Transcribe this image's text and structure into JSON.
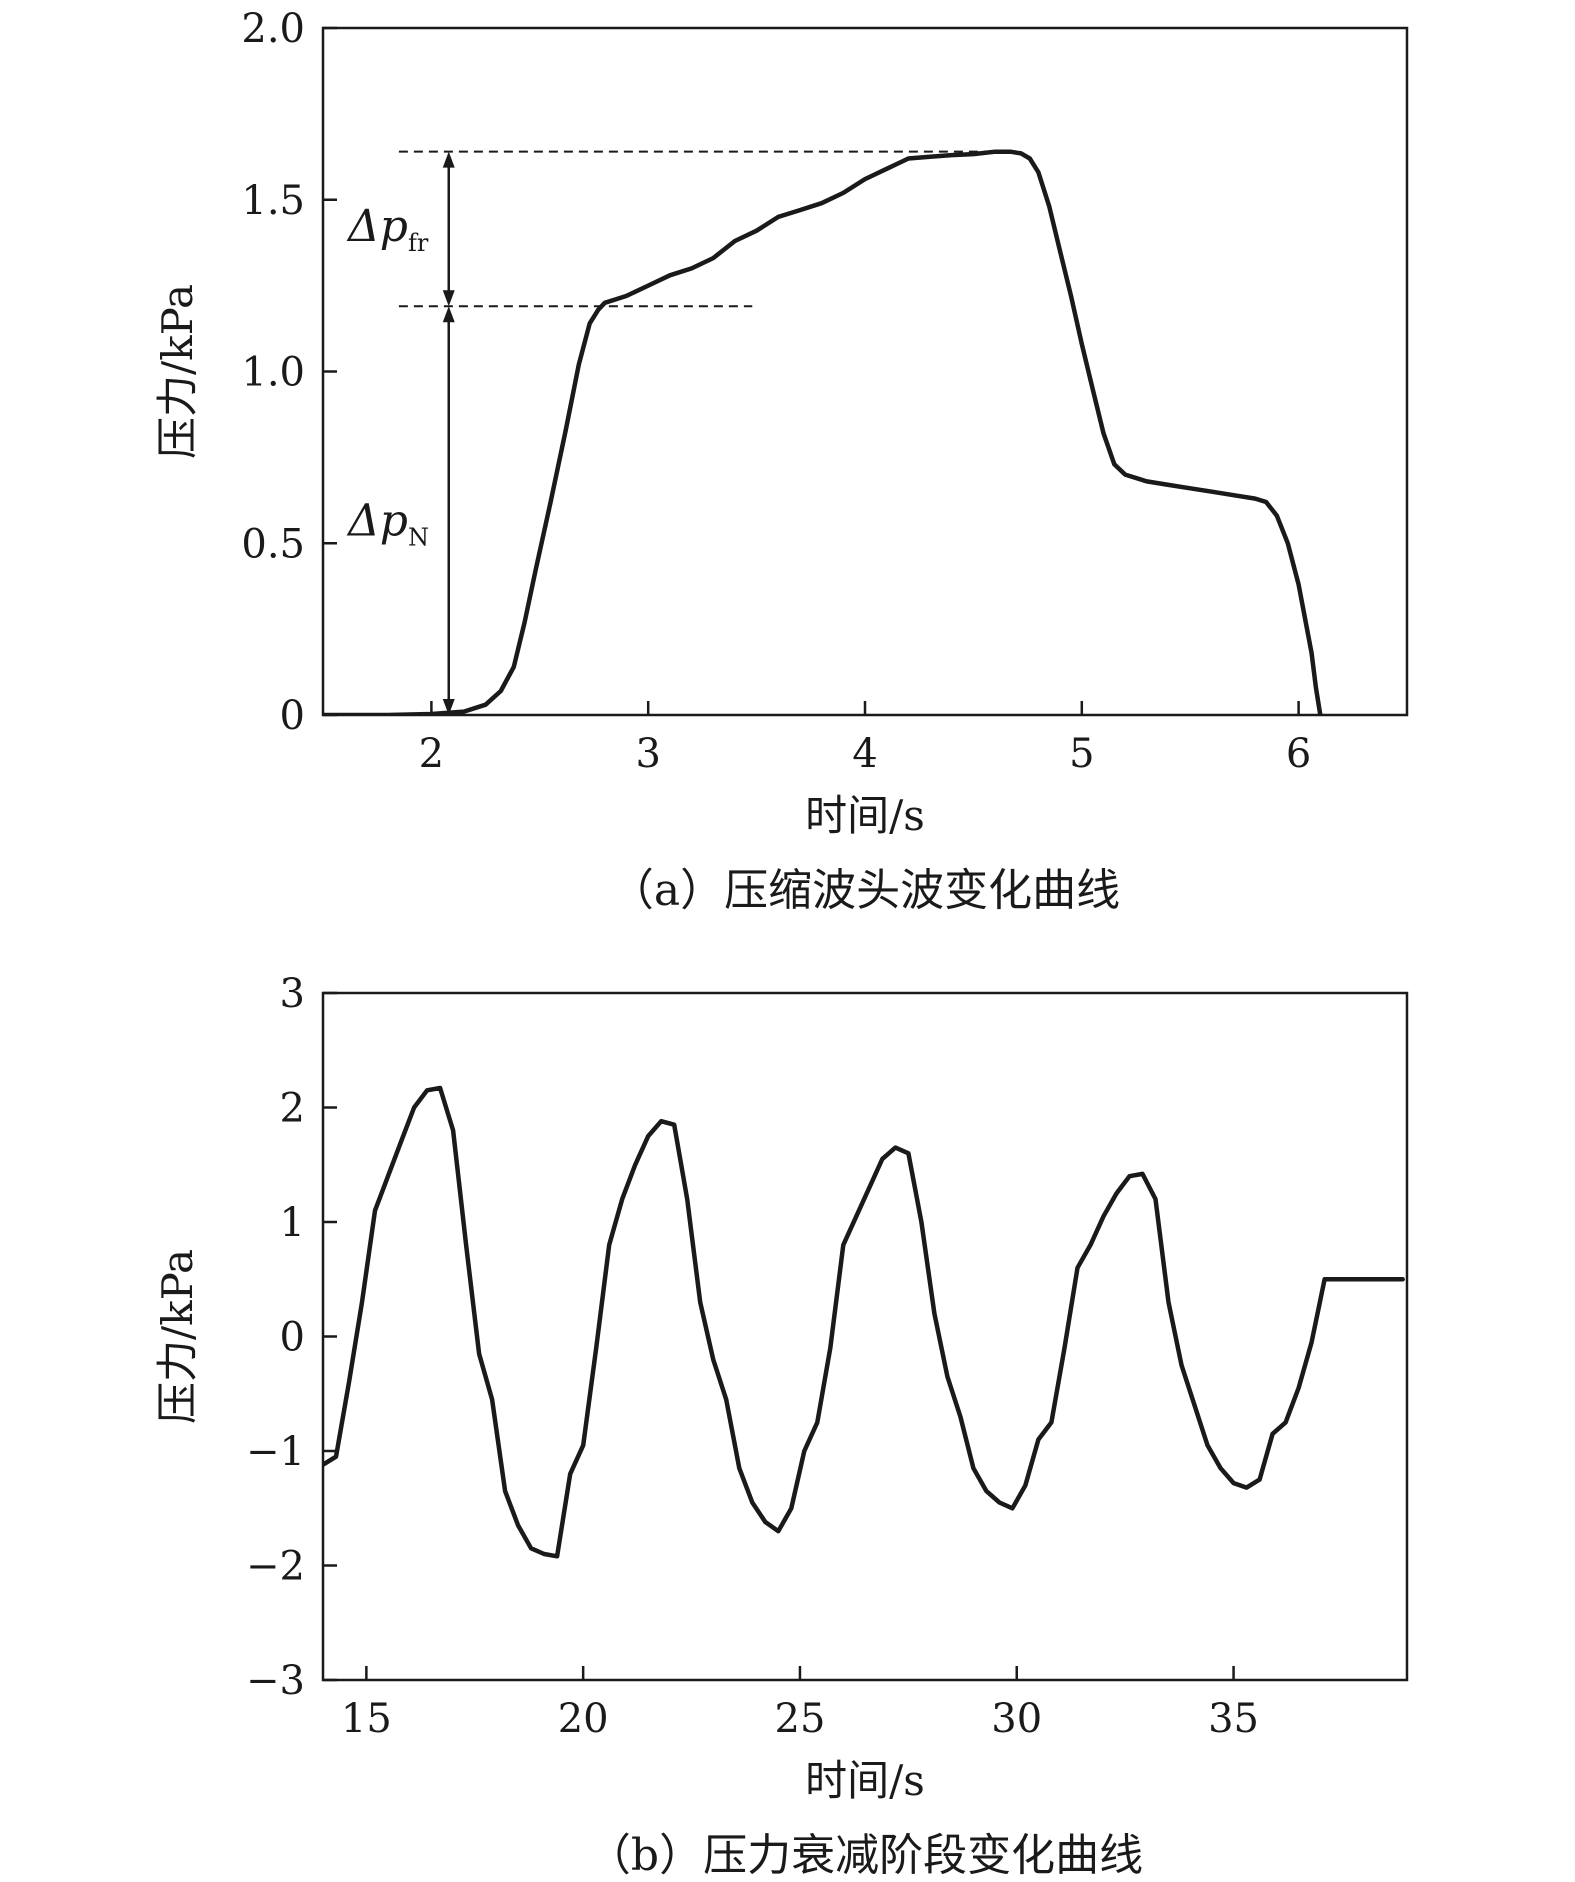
{
  "chart_data": [
    {
      "type": "line",
      "caption": "（a）压缩波头波变化曲线",
      "xlabel": "时间/s",
      "ylabel": "压力/kPa",
      "xlim": [
        1.5,
        6.5
      ],
      "ylim": [
        0,
        2.0
      ],
      "xticks": [
        2,
        3,
        4,
        5,
        6
      ],
      "xtick_labels": [
        "2",
        "3",
        "4",
        "5",
        "6"
      ],
      "yticks": [
        0,
        0.5,
        1.0,
        1.5,
        2.0
      ],
      "ytick_labels": [
        "0",
        "0.5",
        "1.0",
        "1.5",
        "2.0"
      ],
      "grid": false,
      "series": [
        {
          "x": [
            1.5,
            1.8,
            2.0,
            2.15,
            2.25,
            2.32,
            2.38,
            2.43,
            2.48,
            2.55,
            2.62,
            2.68,
            2.73,
            2.77,
            2.8,
            2.85,
            2.9,
            3.0,
            3.1,
            3.2,
            3.3,
            3.4,
            3.5,
            3.6,
            3.7,
            3.8,
            3.9,
            4.0,
            4.1,
            4.2,
            4.3,
            4.4,
            4.5,
            4.6,
            4.67,
            4.72,
            4.76,
            4.8,
            4.85,
            4.9,
            4.95,
            5.0,
            5.05,
            5.1,
            5.15,
            5.2,
            5.3,
            5.4,
            5.5,
            5.6,
            5.7,
            5.8,
            5.85,
            5.9,
            5.95,
            6.0,
            6.03,
            6.06,
            6.08,
            6.1
          ],
          "y": [
            0.0,
            0.0,
            0.003,
            0.01,
            0.03,
            0.07,
            0.14,
            0.27,
            0.42,
            0.62,
            0.83,
            1.02,
            1.14,
            1.18,
            1.2,
            1.21,
            1.22,
            1.25,
            1.28,
            1.3,
            1.33,
            1.38,
            1.41,
            1.45,
            1.47,
            1.49,
            1.52,
            1.56,
            1.59,
            1.62,
            1.625,
            1.63,
            1.633,
            1.64,
            1.64,
            1.635,
            1.62,
            1.58,
            1.48,
            1.35,
            1.22,
            1.08,
            0.95,
            0.82,
            0.73,
            0.7,
            0.68,
            0.67,
            0.66,
            0.65,
            0.64,
            0.63,
            0.62,
            0.58,
            0.5,
            0.38,
            0.28,
            0.18,
            0.08,
            0.0
          ]
        }
      ],
      "annotations": [
        {
          "label": "Δp",
          "subscript": "fr",
          "from_y": 1.19,
          "to_y": 1.64,
          "x": 2.08
        },
        {
          "label": "Δp",
          "subscript": "N",
          "from_y": 0.0,
          "to_y": 1.19,
          "x": 2.08
        }
      ],
      "reference_lines": [
        {
          "y": 1.64,
          "x_from": 1.85,
          "x_to": 4.6
        },
        {
          "y": 1.19,
          "x_from": 1.85,
          "x_to": 3.48
        }
      ]
    },
    {
      "type": "line",
      "caption": "（b）压力衰减阶段变化曲线",
      "xlabel": "时间/s",
      "ylabel": "压力/kPa",
      "xlim": [
        14,
        39
      ],
      "ylim": [
        -3,
        3
      ],
      "xticks": [
        15,
        20,
        25,
        30,
        35
      ],
      "xtick_labels": [
        "15",
        "20",
        "25",
        "30",
        "35"
      ],
      "yticks": [
        -3,
        -2,
        -1,
        0,
        1,
        2,
        3
      ],
      "ytick_labels": [
        "−3",
        "−2",
        "−1",
        "0",
        "1",
        "2",
        "3"
      ],
      "grid": false,
      "series": [
        {
          "x": [
            14.0,
            14.3,
            14.6,
            14.9,
            15.2,
            15.5,
            15.8,
            16.1,
            16.4,
            16.7,
            17.0,
            17.3,
            17.6,
            17.9,
            18.2,
            18.5,
            18.8,
            19.1,
            19.4,
            19.7,
            20.0,
            20.3,
            20.6,
            20.9,
            21.2,
            21.5,
            21.8,
            22.1,
            22.4,
            22.7,
            23.0,
            23.3,
            23.6,
            23.9,
            24.2,
            24.5,
            24.8,
            25.1,
            25.4,
            25.7,
            26.0,
            26.3,
            26.6,
            26.9,
            27.2,
            27.5,
            27.8,
            28.1,
            28.4,
            28.7,
            29.0,
            29.3,
            29.6,
            29.9,
            30.2,
            30.5,
            30.8,
            31.1,
            31.4,
            31.7,
            32.0,
            32.3,
            32.6,
            32.9,
            33.2,
            33.5,
            33.8,
            34.1,
            34.4,
            34.7,
            35.0,
            35.3,
            35.6,
            35.9,
            36.2,
            36.5,
            36.8,
            37.1,
            37.4,
            37.7,
            38.0,
            38.3,
            38.6,
            38.9
          ],
          "y": [
            -1.12,
            -1.05,
            -0.4,
            0.3,
            1.1,
            1.4,
            1.7,
            2.0,
            2.15,
            2.17,
            1.8,
            0.8,
            -0.15,
            -0.55,
            -1.35,
            -1.65,
            -1.85,
            -1.9,
            -1.92,
            -1.2,
            -0.95,
            -0.1,
            0.8,
            1.2,
            1.5,
            1.75,
            1.88,
            1.85,
            1.2,
            0.3,
            -0.2,
            -0.55,
            -1.15,
            -1.45,
            -1.62,
            -1.7,
            -1.5,
            -1.0,
            -0.75,
            -0.1,
            0.8,
            1.05,
            1.3,
            1.55,
            1.65,
            1.6,
            1.0,
            0.2,
            -0.35,
            -0.7,
            -1.15,
            -1.35,
            -1.45,
            -1.5,
            -1.3,
            -0.9,
            -0.75,
            -0.1,
            0.6,
            0.8,
            1.05,
            1.25,
            1.4,
            1.42,
            1.2,
            0.3,
            -0.25,
            -0.6,
            -0.95,
            -1.15,
            -1.28,
            -1.32,
            -1.25,
            -0.85,
            -0.75,
            -0.45,
            -0.05,
            0.5,
            0.5,
            0.5,
            0.5,
            0.5,
            0.5,
            0.5
          ]
        }
      ]
    }
  ]
}
